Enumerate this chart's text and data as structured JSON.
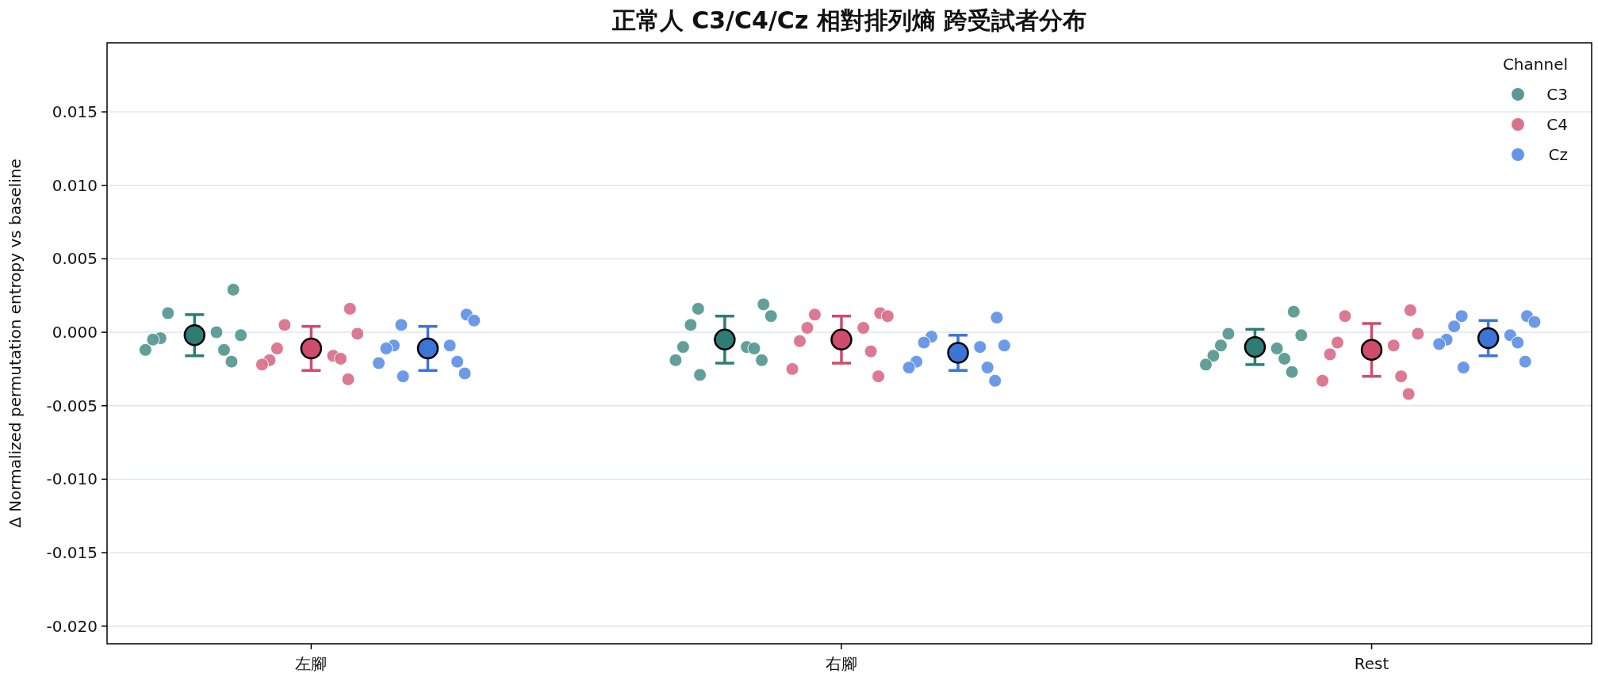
{
  "chart_data": {
    "type": "scatter",
    "title": "正常人 C3/C4/Cz 相對排列熵 跨受試者分布",
    "ylabel": "Δ Normalized permutation entropy vs baseline",
    "legend_title": "Channel",
    "legend": "top right",
    "grid": "y",
    "marker": "circle",
    "categories": [
      "左腳",
      "右腳",
      "Rest"
    ],
    "ylim": [
      -0.0212,
      0.0197
    ],
    "yticks": [
      {
        "value": -0.02,
        "label": "-0.020"
      },
      -0.015,
      {
        "value": -0.01,
        "label": "-0.010"
      },
      -0.005,
      {
        "value": 0,
        "label": "0.000"
      },
      0.005,
      {
        "value": 0.01,
        "label": "0.010"
      },
      0.015
    ],
    "series": [
      {
        "name": "C3",
        "color": "#5b9a94",
        "x": [
          "左腳",
          "左腳",
          "左腳",
          "左腳",
          "左腳",
          "左腳",
          "左腳",
          "左腳",
          "左腳",
          "右腳",
          "右腳",
          "右腳",
          "右腳",
          "右腳",
          "右腳",
          "右腳",
          "右腳",
          "右腳",
          "右腳",
          "Rest",
          "Rest",
          "Rest",
          "Rest",
          "Rest",
          "Rest",
          "Rest",
          "Rest",
          "Rest"
        ],
        "values": [
          0.0029,
          0.0013,
          -0.0002,
          -0.0004,
          0.0,
          -0.0005,
          -0.0012,
          -0.0012,
          -0.002,
          0.0019,
          0.0016,
          0.0011,
          0.0005,
          -0.001,
          -0.001,
          -0.0011,
          -0.0019,
          -0.0019,
          -0.0029,
          0.0014,
          -0.0001,
          -0.0002,
          -0.0009,
          -0.0011,
          -0.0016,
          -0.0018,
          -0.0022,
          -0.0027
        ]
      },
      {
        "name": "C4",
        "color": "#d9738c",
        "x": [
          "左腳",
          "左腳",
          "左腳",
          "左腳",
          "左腳",
          "左腳",
          "左腳",
          "左腳",
          "左腳",
          "右腳",
          "右腳",
          "右腳",
          "右腳",
          "右腳",
          "右腳",
          "右腳",
          "右腳",
          "右腳",
          "Rest",
          "Rest",
          "Rest",
          "Rest",
          "Rest",
          "Rest",
          "Rest",
          "Rest",
          "Rest"
        ],
        "values": [
          0.0016,
          0.0005,
          -0.0001,
          -0.0011,
          -0.0016,
          -0.0019,
          -0.0018,
          -0.0022,
          -0.0032,
          0.0013,
          0.0012,
          0.0011,
          0.0003,
          0.0003,
          -0.0006,
          -0.0013,
          -0.0025,
          -0.003,
          0.0015,
          0.0011,
          -0.0001,
          -0.0007,
          -0.0009,
          -0.0015,
          -0.003,
          -0.0033,
          -0.0042
        ]
      },
      {
        "name": "Cz",
        "color": "#6495e6",
        "x": [
          "左腳",
          "左腳",
          "左腳",
          "左腳",
          "左腳",
          "左腳",
          "左腳",
          "左腳",
          "左腳",
          "左腳",
          "右腳",
          "右腳",
          "右腳",
          "右腳",
          "右腳",
          "右腳",
          "右腳",
          "右腳",
          "右腳",
          "Rest",
          "Rest",
          "Rest",
          "Rest",
          "Rest",
          "Rest",
          "Rest",
          "Rest",
          "Rest",
          "Rest"
        ],
        "values": [
          0.0012,
          0.0005,
          0.0008,
          -0.0009,
          -0.0009,
          -0.0011,
          -0.002,
          -0.0021,
          -0.0028,
          -0.003,
          0.001,
          -0.0003,
          -0.0009,
          -0.0007,
          -0.001,
          -0.002,
          -0.0024,
          -0.0024,
          -0.0033,
          0.0011,
          0.0011,
          0.0007,
          0.0004,
          -0.0002,
          -0.0005,
          -0.0007,
          -0.0008,
          -0.002,
          -0.0024
        ]
      },
      {
        "color": "#2e7d74",
        "x": [
          "左腳",
          "右腳",
          "Rest"
        ],
        "values": [
          -0.0002,
          -0.0005,
          -0.001
        ],
        "errors": [
          0.0014,
          0.0016,
          0.0012
        ]
      },
      {
        "color": "#cf4c6c",
        "x": [
          "左腳",
          "右腳",
          "Rest"
        ],
        "values": [
          -0.0011,
          -0.0005,
          -0.0012
        ],
        "errors": [
          0.0015,
          0.0016,
          0.0018
        ]
      },
      {
        "color": "#3d74d8",
        "x": [
          "左腳",
          "右腳",
          "Rest"
        ],
        "values": [
          -0.0011,
          -0.0014,
          -0.0004
        ],
        "errors": [
          0.0015,
          0.0012,
          0.0012
        ]
      }
    ]
  }
}
